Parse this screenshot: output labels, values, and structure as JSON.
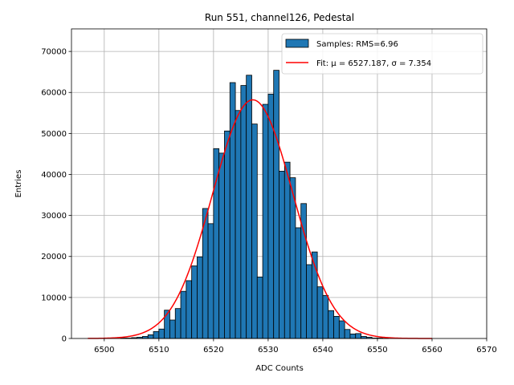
{
  "chart_data": {
    "type": "bar",
    "title": "Run 551, channel126, Pedestal",
    "xlabel": "ADC Counts",
    "ylabel": "Entries",
    "xlim": [
      6494,
      6570
    ],
    "ylim": [
      0,
      75500
    ],
    "xticks": [
      6500,
      6510,
      6520,
      6530,
      6540,
      6550,
      6560,
      6570
    ],
    "yticks": [
      0,
      10000,
      20000,
      30000,
      40000,
      50000,
      60000,
      70000
    ],
    "grid": true,
    "legend_position": "top-right",
    "bin_width": 1,
    "bin_left_edges": [
      6503,
      6504,
      6505,
      6506,
      6507,
      6508,
      6509,
      6510,
      6511,
      6512,
      6513,
      6514,
      6515,
      6516,
      6517,
      6518,
      6519,
      6520,
      6521,
      6522,
      6523,
      6524,
      6525,
      6526,
      6527,
      6528,
      6529,
      6530,
      6531,
      6532,
      6533,
      6534,
      6535,
      6536,
      6537,
      6538,
      6539,
      6540,
      6541,
      6542,
      6543,
      6544,
      6545,
      6546,
      6547,
      6548,
      6549,
      6550,
      6551
    ],
    "values": [
      100,
      100,
      200,
      300,
      500,
      900,
      1700,
      2300,
      6900,
      4500,
      7300,
      11500,
      14100,
      17700,
      19900,
      31700,
      28000,
      46300,
      45200,
      50600,
      62400,
      55600,
      61700,
      64200,
      52300,
      15000,
      57100,
      59600,
      65400,
      40800,
      43000,
      39200,
      27000,
      32900,
      18000,
      21100,
      12600,
      10500,
      6800,
      5400,
      4300,
      2200,
      1100,
      1200,
      500,
      300,
      100,
      100,
      50
    ],
    "histogram_label": "Samples: RMS=6.96",
    "histogram_color": "#1f77b4",
    "fit": {
      "label": "Fit: μ = 6527.187, σ = 7.354",
      "mu": 6527.187,
      "sigma": 7.354,
      "amplitude": 58200,
      "x_range": [
        6497,
        6560
      ],
      "color": "#ff0000"
    }
  }
}
